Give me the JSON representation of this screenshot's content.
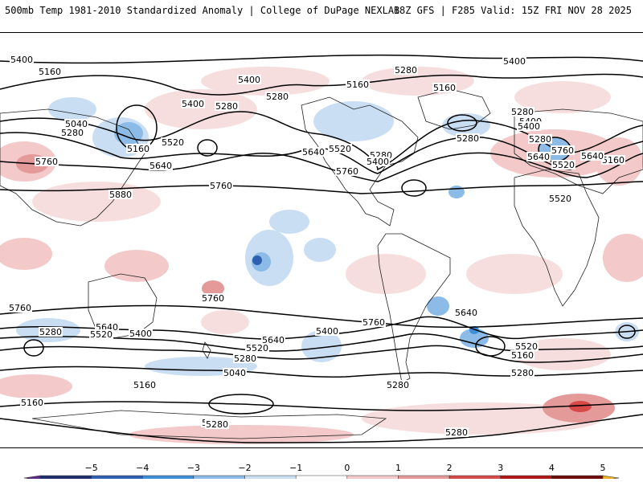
{
  "header": {
    "left": "500mb Temp 1981-2010 Standardized Anomaly | College of DuPage NEXLAB",
    "right": "18Z GFS | F285 Valid: 15Z FRI NOV 28 2025"
  },
  "contour_labels": [
    "5400",
    "5160",
    "5400",
    "5280",
    "5160",
    "5160",
    "5400",
    "5400",
    "5280",
    "5280",
    "5280",
    "5280",
    "5400",
    "5640",
    "5760",
    "5040",
    "5280",
    "5160",
    "5520",
    "5640",
    "5520",
    "5280",
    "5400",
    "5760",
    "5760",
    "5880",
    "5760",
    "5280",
    "5640",
    "5520",
    "5160",
    "5640",
    "5520",
    "5400",
    "5760",
    "5760",
    "5280",
    "5640",
    "5520",
    "5400",
    "5640",
    "5520",
    "5400",
    "5760",
    "5640",
    "5160",
    "5040",
    "5160",
    "5280",
    "5280",
    "5280",
    "5520",
    "5280",
    "5160",
    "5280",
    "5280"
  ],
  "colorbar": {
    "ticks": [
      "−5",
      "−4",
      "−3",
      "−2",
      "−1",
      "0",
      "1",
      "2",
      "3",
      "4",
      "5"
    ],
    "colors": [
      "#5b2c8c",
      "#1f2f6e",
      "#2f5fb0",
      "#3c8fd8",
      "#8bbbe6",
      "#c9def3",
      "#ffffff",
      "#f3c9c9",
      "#e59a9a",
      "#d74a4a",
      "#b01818",
      "#6e0c0c",
      "#e8b020"
    ]
  }
}
